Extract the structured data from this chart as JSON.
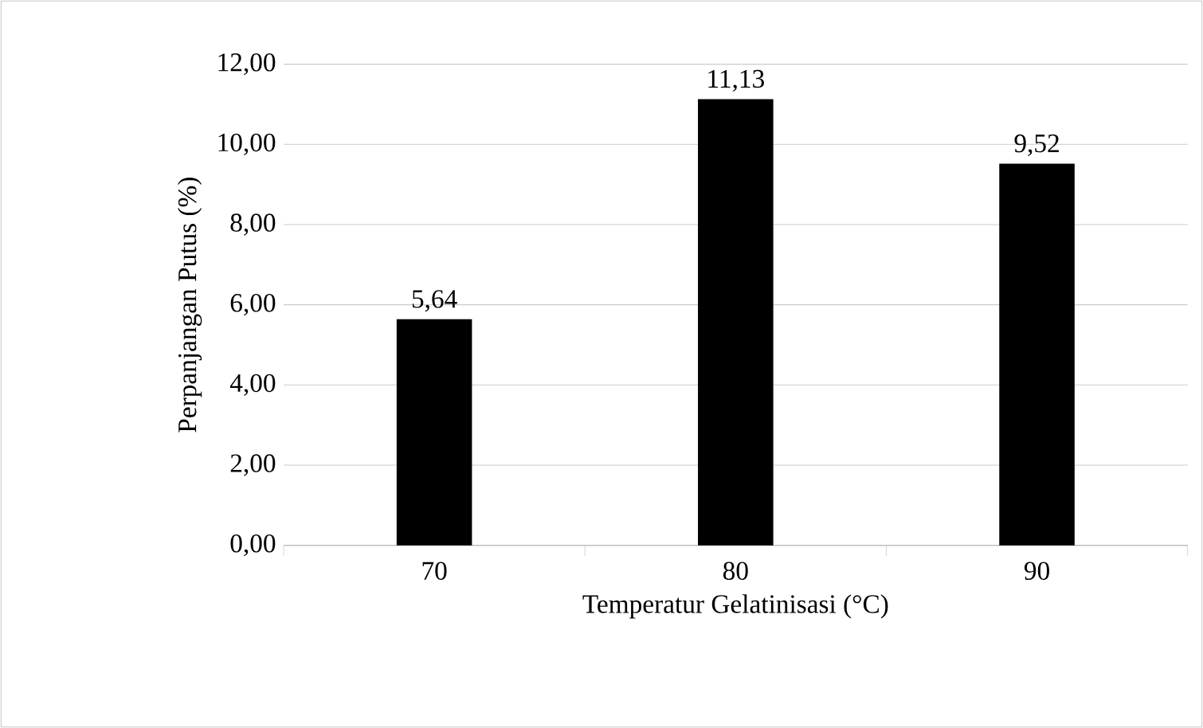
{
  "chart_data": {
    "type": "bar",
    "xlabel": "Temperatur Gelatinisasi (°C)",
    "ylabel": "Perpanjangan Putus (%)",
    "categories": [
      "70",
      "80",
      "90"
    ],
    "values": [
      5.64,
      11.13,
      9.52
    ],
    "value_labels": [
      "5,64",
      "11,13",
      "9,52"
    ],
    "color": "#000000",
    "ylim": [
      0,
      12
    ],
    "yticks": [
      {
        "value": 0,
        "label": "0,00"
      },
      {
        "value": 2,
        "label": "2,00"
      },
      {
        "value": 4,
        "label": "4,00"
      },
      {
        "value": 6,
        "label": "6,00"
      },
      {
        "value": 8,
        "label": "8,00"
      },
      {
        "value": 10,
        "label": "10,00"
      },
      {
        "value": 12,
        "label": "12,00"
      }
    ],
    "grid": "y"
  }
}
